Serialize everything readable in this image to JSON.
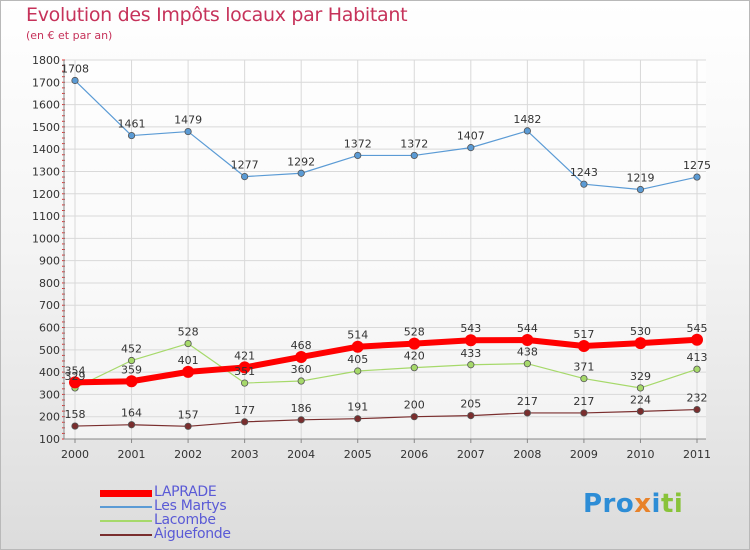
{
  "title": "Evolution des Impôts locaux par Habitant",
  "subtitle": "(en € et par an)",
  "brand": {
    "p1": "Pro",
    "p2": "x",
    "p3": "i",
    "p4": "ti"
  },
  "colors": {
    "title": "#c6325a",
    "legend_text": "#5a5ad6"
  },
  "chart_data": {
    "type": "line",
    "title": "Evolution des Impôts locaux par Habitant",
    "subtitle": "(en € et par an)",
    "x": [
      "2000",
      "2001",
      "2002",
      "2003",
      "2004",
      "2005",
      "2006",
      "2007",
      "2008",
      "2009",
      "2010",
      "2011"
    ],
    "y_ticks": [
      "100",
      "200",
      "300",
      "400",
      "500",
      "600",
      "700",
      "800",
      "900",
      "1000",
      "1100",
      "1200",
      "1300",
      "1400",
      "1500",
      "1600",
      "1700",
      "1800"
    ],
    "ylim": [
      100,
      1800
    ],
    "grid": true,
    "legend_position": "bottom-left",
    "series": [
      {
        "name": "LAPRADE",
        "color": "#ff0000",
        "values": [
          354,
          359,
          401,
          421,
          468,
          514,
          528,
          543,
          544,
          517,
          530,
          545
        ]
      },
      {
        "name": "Les Martys",
        "color": "#5b9bd5",
        "values": [
          1708,
          1461,
          1479,
          1277,
          1292,
          1372,
          1372,
          1407,
          1482,
          1243,
          1219,
          1275
        ]
      },
      {
        "name": "Lacombe",
        "color": "#a6d96a",
        "values": [
          329,
          452,
          528,
          351,
          360,
          405,
          420,
          433,
          438,
          371,
          329,
          413
        ]
      },
      {
        "name": "Aiguefonde",
        "color": "#7a2e2e",
        "values": [
          158,
          164,
          157,
          177,
          186,
          191,
          200,
          205,
          217,
          217,
          224,
          232
        ]
      }
    ]
  }
}
